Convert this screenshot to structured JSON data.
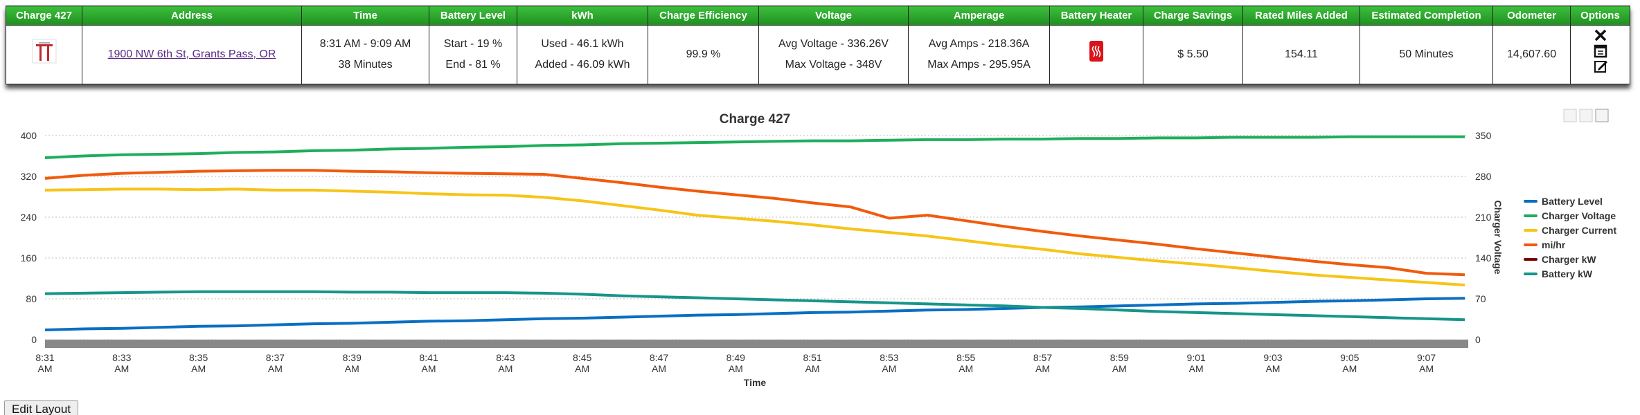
{
  "table": {
    "headers": [
      "Charge 427",
      "Address",
      "Time",
      "Battery Level",
      "kWh",
      "Charge Efficiency",
      "Voltage",
      "Amperage",
      "Battery Heater",
      "Charge Savings",
      "Rated Miles Added",
      "Estimated Completion",
      "Odometer",
      "Options"
    ],
    "row": {
      "address": "1900 NW 6th St, Grants Pass, OR",
      "time": [
        "8:31 AM - 9:09 AM",
        "38 Minutes"
      ],
      "battery_level": [
        "Start - 19 %",
        "End - 81 %"
      ],
      "kwh": [
        "Used - 46.1 kWh",
        "Added - 46.09 kWh"
      ],
      "efficiency": "99.9 %",
      "voltage": [
        "Avg Voltage - 336.26V",
        "Max Voltage - 348V"
      ],
      "amperage": [
        "Avg Amps - 218.36A",
        "Max Amps - 295.95A"
      ],
      "savings": "$ 5.50",
      "miles": "154.11",
      "completion": "50 Minutes",
      "odometer": "14,607.60"
    }
  },
  "chart_data": {
    "type": "line",
    "title": "Charge 427",
    "x_label": "Time",
    "y2_label": "Charger Voltage",
    "categories": [
      "8:31 AM",
      null,
      "8:33 AM",
      null,
      "8:35 AM",
      null,
      "8:37 AM",
      null,
      "8:39 AM",
      null,
      "8:41 AM",
      null,
      "8:43 AM",
      null,
      "8:45 AM",
      null,
      "8:47 AM",
      null,
      "8:49 AM",
      null,
      "8:51 AM",
      null,
      "8:53 AM",
      null,
      "8:55 AM",
      null,
      "8:57 AM",
      null,
      "8:59 AM",
      null,
      "9:01 AM",
      null,
      "9:03 AM",
      null,
      "9:05 AM",
      null,
      "9:07 AM",
      null
    ],
    "ylim": [
      0,
      400
    ],
    "yticks": [
      0,
      80,
      160,
      240,
      320,
      400
    ],
    "y2lim": [
      0,
      350
    ],
    "y2ticks": [
      0,
      70,
      140,
      210,
      280,
      350
    ],
    "grid": true,
    "legend": "right",
    "series": [
      {
        "name": "Battery Level",
        "color": "#0a6fc2",
        "values": [
          19,
          21,
          22,
          24,
          26,
          27,
          29,
          31,
          32,
          34,
          36,
          37,
          39,
          41,
          42,
          44,
          46,
          48,
          49,
          51,
          53,
          54,
          56,
          58,
          59,
          61,
          63,
          64,
          66,
          68,
          70,
          71,
          73,
          75,
          76,
          78,
          80,
          81
        ]
      },
      {
        "name": "Charger Voltage",
        "color": "#1fae5b",
        "axis": "y2",
        "values": [
          312,
          315,
          317,
          318,
          319,
          321,
          322,
          324,
          325,
          327,
          328,
          330,
          331,
          333,
          334,
          336,
          337,
          338,
          339,
          340,
          341,
          341,
          342,
          343,
          343,
          344,
          344,
          345,
          345,
          346,
          346,
          347,
          347,
          347,
          348,
          348,
          348,
          348
        ]
      },
      {
        "name": "Charger Current",
        "color": "#f5c518",
        "values": [
          293,
          294,
          295,
          295,
          294,
          295,
          293,
          293,
          291,
          289,
          286,
          284,
          283,
          279,
          272,
          263,
          254,
          244,
          238,
          232,
          225,
          217,
          210,
          203,
          194,
          185,
          177,
          168,
          161,
          154,
          148,
          141,
          134,
          127,
          122,
          117,
          112,
          107
        ]
      },
      {
        "name": "mi/hr",
        "color": "#f15a0d",
        "values": [
          316,
          322,
          326,
          328,
          330,
          331,
          332,
          332,
          330,
          329,
          327,
          326,
          325,
          324,
          316,
          308,
          299,
          291,
          284,
          277,
          268,
          260,
          238,
          244,
          233,
          222,
          212,
          203,
          195,
          187,
          178,
          170,
          162,
          154,
          147,
          141,
          130,
          127
        ]
      },
      {
        "name": "Charger kW",
        "color": "#7a0000",
        "values": [
          null,
          null,
          null,
          null,
          null,
          null,
          null,
          null,
          null,
          null,
          null,
          null,
          null,
          null,
          null,
          null,
          null,
          null,
          null,
          null,
          null,
          null,
          null,
          null,
          null,
          null,
          null,
          null,
          null,
          null,
          null,
          null,
          null,
          null,
          null,
          null,
          null,
          null
        ]
      },
      {
        "name": "Battery kW",
        "color": "#17958a",
        "values": [
          90,
          91,
          92,
          93,
          94,
          94,
          94,
          94,
          93,
          93,
          92,
          92,
          92,
          91,
          89,
          86,
          84,
          82,
          80,
          78,
          76,
          74,
          72,
          70,
          68,
          66,
          63,
          61,
          58,
          55,
          53,
          51,
          49,
          47,
          45,
          43,
          41,
          39
        ]
      }
    ]
  },
  "button": "Edit Layout"
}
